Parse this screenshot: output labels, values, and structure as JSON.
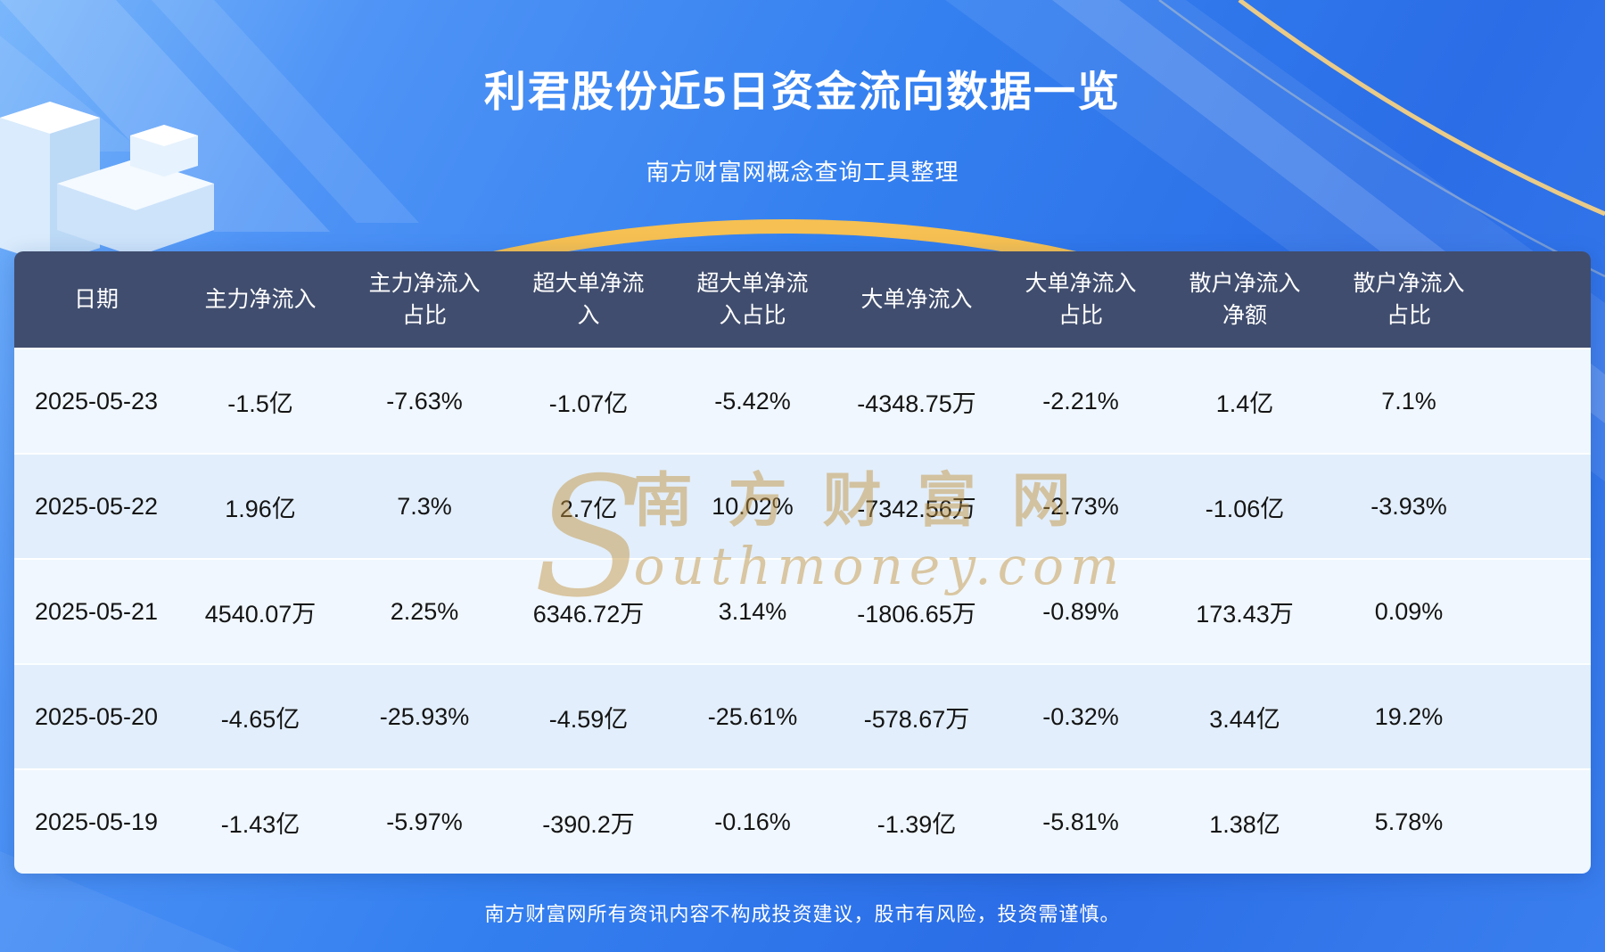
{
  "page": {
    "title": "利君股份近5日资金流向数据一览",
    "subtitle": "南方财富网概念查询工具整理",
    "footer": "南方财富网所有资讯内容不构成投资建议，股市有风险，投资需谨慎。"
  },
  "watermark": {
    "initial": "S",
    "cn": "南方财富网",
    "en": "outhmoney.com"
  },
  "colors": {
    "background_blue": "#3480F0",
    "header_bg": "#404D6E",
    "row_odd": "#F0F7FE",
    "row_even": "#E2EEFB",
    "accent_gold": "#F6C052",
    "title_text": "#FFFFFF",
    "cell_text": "#141414"
  },
  "chart_data": {
    "type": "table",
    "title": "利君股份近5日资金流向数据一览",
    "columns": [
      "日期",
      "主力净流入",
      "主力净流入\n占比",
      "超大单净流\n入",
      "超大单净流\n入占比",
      "大单净流入",
      "大单净流入\n占比",
      "散户净流入\n净额",
      "散户净流入\n占比"
    ],
    "rows": [
      [
        "2025-05-23",
        "-1.5亿",
        "-7.63%",
        "-1.07亿",
        "-5.42%",
        "-4348.75万",
        "-2.21%",
        "1.4亿",
        "7.1%"
      ],
      [
        "2025-05-22",
        "1.96亿",
        "7.3%",
        "2.7亿",
        "10.02%",
        "-7342.56万",
        "-2.73%",
        "-1.06亿",
        "-3.93%"
      ],
      [
        "2025-05-21",
        "4540.07万",
        "2.25%",
        "6346.72万",
        "3.14%",
        "-1806.65万",
        "-0.89%",
        "173.43万",
        "0.09%"
      ],
      [
        "2025-05-20",
        "-4.65亿",
        "-25.93%",
        "-4.59亿",
        "-25.61%",
        "-578.67万",
        "-0.32%",
        "3.44亿",
        "19.2%"
      ],
      [
        "2025-05-19",
        "-1.43亿",
        "-5.97%",
        "-390.2万",
        "-0.16%",
        "-1.39亿",
        "-5.81%",
        "1.38亿",
        "5.78%"
      ]
    ]
  }
}
